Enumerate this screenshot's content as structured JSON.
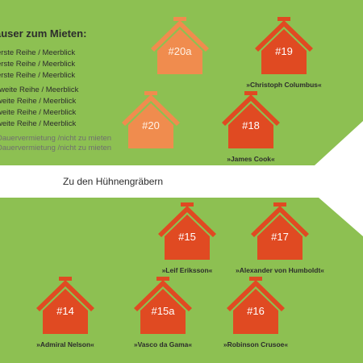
{
  "colors": {
    "green": "#8dc052",
    "orange_dark": "#e04a22",
    "orange_light": "#f08c4e",
    "text": "#2c2c2c",
    "muted_text": "#6f6f6f"
  },
  "legend": {
    "heading": "äuser zum Mieten:",
    "items": [
      "erste Reihe / Meerblick",
      "erste Reihe / Meerblick",
      "erste Reihe / Meerblick",
      "rweite Reihe / Meerblick",
      "weite Reihe / Meerblick",
      "weite Reihe / Meerblick",
      "weite Reihe / Meerblick",
      "Dauervermietung /nicht zu mieten",
      "Dauervermietung /nicht zu mieten"
    ]
  },
  "path_label": "Zu den Hühnengräbern",
  "houses": [
    {
      "id": "20a",
      "number": "#20a",
      "name": "",
      "style": "light"
    },
    {
      "id": "19",
      "number": "#19",
      "name": "»Christoph Columbus«",
      "style": "dark"
    },
    {
      "id": "20",
      "number": "#20",
      "name": "",
      "style": "light"
    },
    {
      "id": "18",
      "number": "#18",
      "name": "»James Cook«",
      "style": "dark"
    },
    {
      "id": "15",
      "number": "#15",
      "name": "»Leif Eriksson«",
      "style": "dark"
    },
    {
      "id": "17",
      "number": "#17",
      "name": "»Alexander von Humboldt«",
      "style": "dark"
    },
    {
      "id": "14",
      "number": "#14",
      "name": "»Admiral Nelson«",
      "style": "dark"
    },
    {
      "id": "15a",
      "number": "#15a",
      "name": "»Vasco da Gama«",
      "style": "dark"
    },
    {
      "id": "16",
      "number": "#16",
      "name": "»Robinson Crusoe«",
      "style": "dark"
    }
  ]
}
